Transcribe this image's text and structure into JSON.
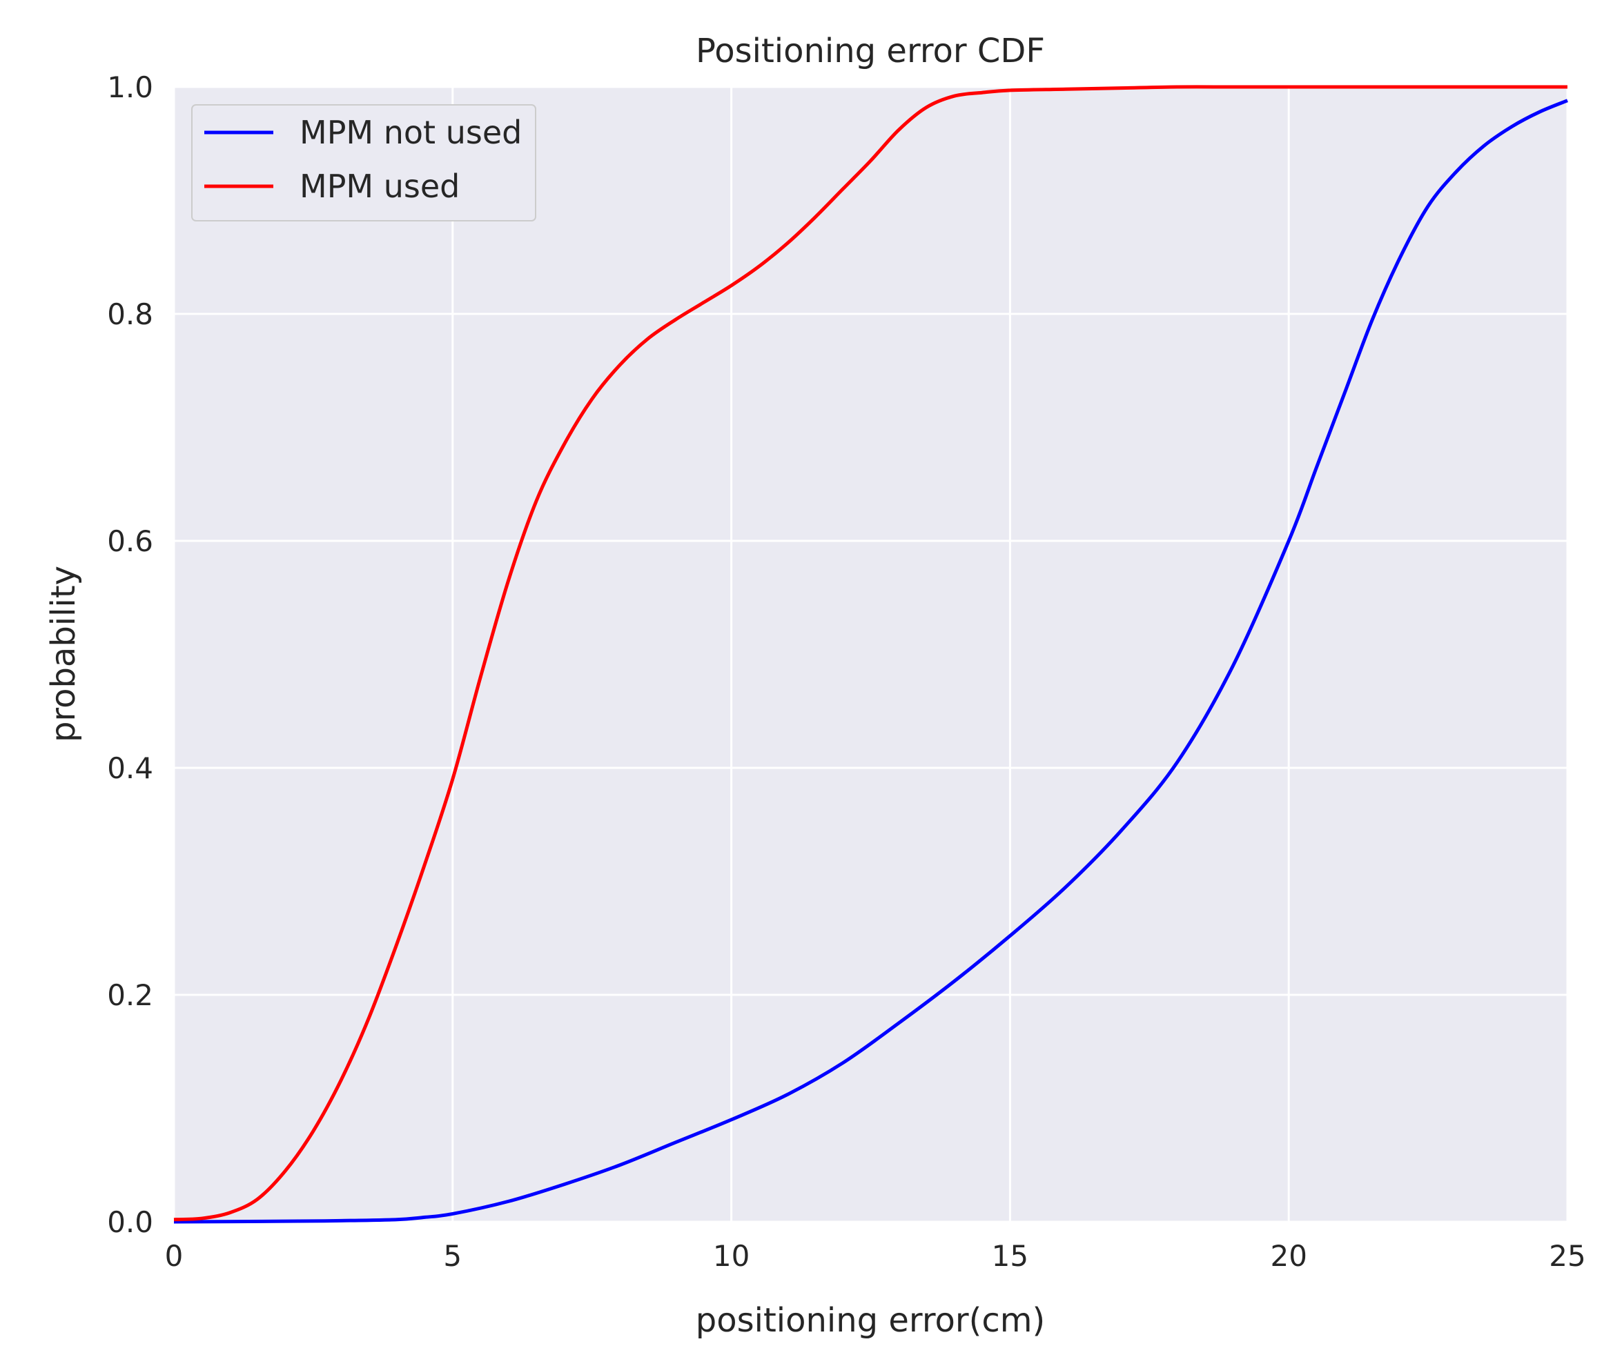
{
  "chart_data": {
    "type": "line",
    "title": "Positioning error CDF",
    "xlabel": "positioning error(cm)",
    "ylabel": "probability",
    "xlim": [
      0,
      25
    ],
    "ylim": [
      0,
      1
    ],
    "xticks": [
      "0",
      "5",
      "10",
      "15",
      "20",
      "25"
    ],
    "yticks": [
      "0.0",
      "0.2",
      "0.4",
      "0.6",
      "0.8",
      "1.0"
    ],
    "grid": true,
    "legend_position": "top-left",
    "background_color": "#EAEAF2",
    "series": [
      {
        "name": "MPM not used",
        "color": "#0000FF",
        "x": [
          0,
          2,
          3,
          4,
          4.5,
          5,
          6,
          7,
          8,
          9,
          10,
          11,
          12,
          13,
          14,
          15,
          16,
          17,
          18,
          19,
          20,
          20.5,
          21,
          21.5,
          22,
          22.5,
          23,
          23.5,
          24,
          24.5,
          25
        ],
        "y": [
          0,
          0.0005,
          0.001,
          0.002,
          0.004,
          0.007,
          0.018,
          0.033,
          0.05,
          0.07,
          0.09,
          0.112,
          0.14,
          0.175,
          0.212,
          0.252,
          0.295,
          0.345,
          0.405,
          0.49,
          0.6,
          0.665,
          0.73,
          0.795,
          0.85,
          0.895,
          0.925,
          0.948,
          0.965,
          0.978,
          0.988
        ]
      },
      {
        "name": "MPM used",
        "color": "#FF0000",
        "x": [
          0,
          0.5,
          1,
          1.5,
          2,
          2.5,
          3,
          3.5,
          4,
          4.5,
          5,
          5.5,
          6,
          6.5,
          7,
          7.5,
          8,
          8.5,
          9,
          9.5,
          10,
          10.5,
          11,
          11.5,
          12,
          12.5,
          13,
          13.5,
          14,
          14.5,
          15,
          16,
          17,
          18,
          19,
          20,
          22,
          25
        ],
        "y": [
          0.002,
          0.003,
          0.008,
          0.02,
          0.045,
          0.08,
          0.125,
          0.18,
          0.245,
          0.315,
          0.39,
          0.48,
          0.565,
          0.635,
          0.685,
          0.725,
          0.755,
          0.778,
          0.795,
          0.81,
          0.825,
          0.842,
          0.862,
          0.885,
          0.91,
          0.935,
          0.962,
          0.982,
          0.992,
          0.995,
          0.997,
          0.998,
          0.999,
          1.0,
          1.0,
          1.0,
          1.0,
          1.0
        ]
      }
    ]
  }
}
